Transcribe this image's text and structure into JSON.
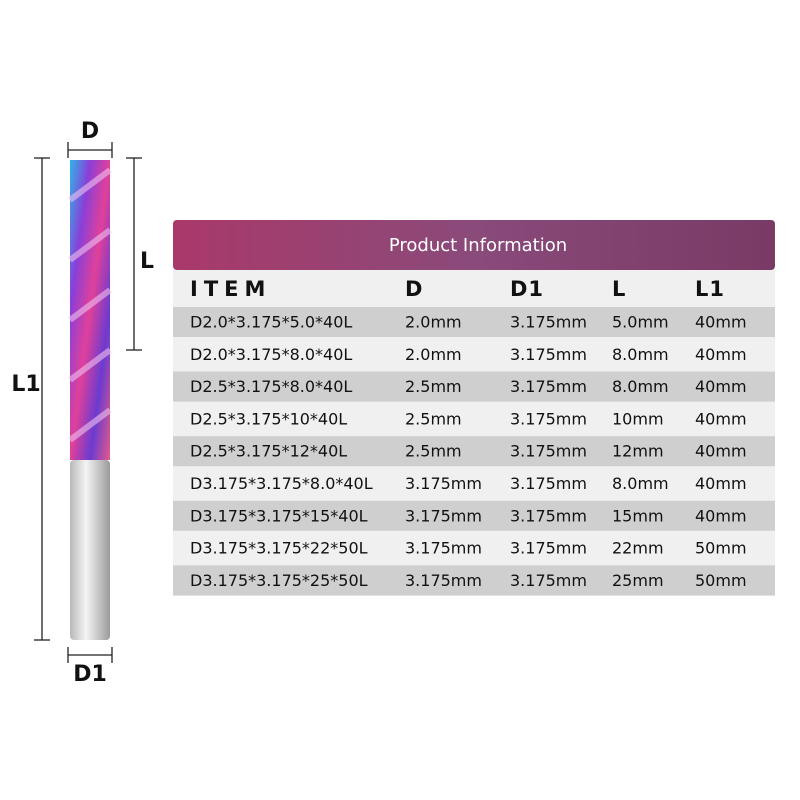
{
  "diagram": {
    "labels": {
      "d": "D",
      "l": "L",
      "l1": "L1",
      "d1": "D1"
    }
  },
  "table": {
    "title": "Product Information",
    "headers": [
      "ITEM",
      "D",
      "D1",
      "L",
      "L1"
    ],
    "rows": [
      [
        "D2.0*3.175*5.0*40L",
        "2.0mm",
        "3.175mm",
        "5.0mm",
        "40mm"
      ],
      [
        "D2.0*3.175*8.0*40L",
        "2.0mm",
        "3.175mm",
        "8.0mm",
        "40mm"
      ],
      [
        "D2.5*3.175*8.0*40L",
        "2.5mm",
        "3.175mm",
        "8.0mm",
        "40mm"
      ],
      [
        "D2.5*3.175*10*40L",
        "2.5mm",
        "3.175mm",
        "10mm",
        "40mm"
      ],
      [
        "D2.5*3.175*12*40L",
        "2.5mm",
        "3.175mm",
        "12mm",
        "40mm"
      ],
      [
        "D3.175*3.175*8.0*40L",
        "3.175mm",
        "3.175mm",
        "8.0mm",
        "40mm"
      ],
      [
        "D3.175*3.175*15*40L",
        "3.175mm",
        "3.175mm",
        "15mm",
        "40mm"
      ],
      [
        "D3.175*3.175*22*50L",
        "3.175mm",
        "3.175mm",
        "22mm",
        "50mm"
      ],
      [
        "D3.175*3.175*25*50L",
        "3.175mm",
        "3.175mm",
        "25mm",
        "50mm"
      ]
    ]
  }
}
